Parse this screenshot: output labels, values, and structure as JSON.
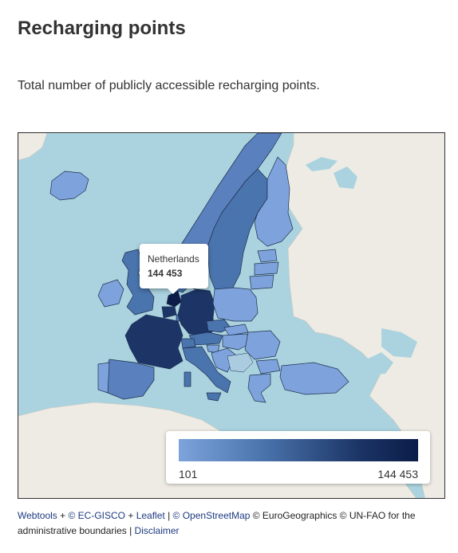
{
  "page": {
    "title": "Recharging points",
    "description": "Total number of publicly accessible recharging points."
  },
  "map": {
    "colors": {
      "sea": "#aad3df",
      "land": "#eeebe4",
      "low": "#7ea3dc",
      "mid": "#4a74ad",
      "high": "#1c3566",
      "max": "#0b1c48",
      "border": "#1f2f4f"
    },
    "tooltip": {
      "country": "Netherlands",
      "value": "144 453"
    },
    "legend": {
      "min": "101",
      "max": "144 453"
    }
  },
  "attribution": {
    "webtools": "Webtools",
    "plus1": " + ",
    "ec_gisco": "© EC-GISCO",
    "plus2": " + ",
    "leaflet": "Leaflet",
    "sep1": " | ",
    "osm": "© OpenStreetMap",
    "rest": " © EuroGeographics © UN-FAO for the administrative boundaries | ",
    "disclaimer": "Disclaimer"
  }
}
